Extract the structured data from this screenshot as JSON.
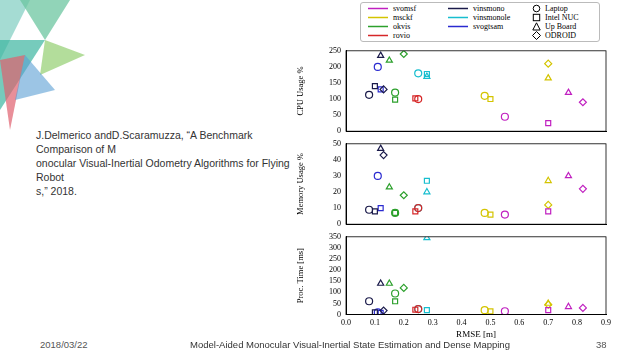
{
  "chart_data": [
    {
      "type": "scatter",
      "ylabel": "CPU Usage %",
      "xlim": [
        0,
        0.9
      ],
      "xticks": [
        {
          "value": 0,
          "label": "0.0"
        },
        0.1,
        0.2,
        0.3,
        0.4,
        0.5,
        0.6,
        0.7,
        0.8,
        0.9
      ],
      "ylim": [
        0,
        250
      ],
      "yticks": [
        0,
        50,
        100,
        150,
        200,
        250
      ],
      "grid": false,
      "tick_labels": "y",
      "series": [
        {
          "name": "svomsf",
          "color": "#c020c0",
          "x": [
            0.55,
            0.7,
            0.77,
            0.82
          ],
          "values": [
            45,
            25,
            120,
            90
          ]
        },
        {
          "name": "msckf",
          "color": "#d4c400",
          "x": [
            0.48,
            0.5,
            0.7,
            0.7
          ],
          "values": [
            110,
            100,
            165,
            210
          ]
        },
        {
          "name": "okvis",
          "color": "#2ca02c",
          "x": [
            0.17,
            0.17,
            0.15,
            0.2
          ],
          "values": [
            120,
            98,
            220,
            240
          ]
        },
        {
          "name": "rovio",
          "color": "#d62728",
          "x": [
            0.25,
            0.24,
            null,
            null
          ],
          "values": [
            100,
            102,
            null,
            null
          ]
        },
        {
          "name": "vinsmono",
          "color": "#1a1a4a",
          "x": [
            0.08,
            0.1,
            0.12,
            0.13
          ],
          "values": [
            113,
            140,
            235,
            130
          ]
        },
        {
          "name": "vinsmonole",
          "color": "#17becf",
          "x": [
            0.25,
            0.28,
            0.28,
            null
          ],
          "values": [
            180,
            178,
            170,
            null
          ]
        },
        {
          "name": "svogtsam",
          "color": "#2a2ad0",
          "x": [
            0.11,
            0.12,
            null,
            null
          ],
          "values": [
            200,
            130,
            null,
            null
          ]
        }
      ]
    },
    {
      "type": "scatter",
      "ylabel": "Memory Usage %",
      "xlim": [
        0,
        0.9
      ],
      "xticks": [
        {
          "value": 0,
          "label": "0.0"
        },
        0.1,
        0.2,
        0.3,
        0.4,
        0.5,
        0.6,
        0.7,
        0.8,
        0.9
      ],
      "ylim": [
        0,
        50
      ],
      "yticks": [
        0,
        10,
        20,
        30,
        40,
        50
      ],
      "grid": false,
      "tick_labels": "y",
      "series": [
        {
          "name": "svomsf",
          "color": "#c020c0",
          "x": [
            0.55,
            0.7,
            0.77,
            0.82
          ],
          "values": [
            6,
            8,
            30,
            22
          ]
        },
        {
          "name": "msckf",
          "color": "#d4c400",
          "x": [
            0.48,
            0.5,
            0.7,
            0.7
          ],
          "values": [
            7,
            6,
            27,
            12
          ]
        },
        {
          "name": "okvis",
          "color": "#2ca02c",
          "x": [
            0.17,
            0.17,
            0.15,
            0.2
          ],
          "values": [
            7,
            7,
            23,
            18
          ]
        },
        {
          "name": "rovio",
          "color": "#d62728",
          "x": [
            0.25,
            0.24,
            null,
            null
          ],
          "values": [
            10,
            8,
            null,
            null
          ]
        },
        {
          "name": "vinsmono",
          "color": "#1a1a4a",
          "x": [
            0.08,
            0.1,
            0.12,
            0.13
          ],
          "values": [
            9,
            8,
            47,
            43
          ]
        },
        {
          "name": "vinsmonole",
          "color": "#17becf",
          "x": [
            0.25,
            0.28,
            0.28,
            null
          ],
          "values": [
            10,
            27,
            20,
            null
          ]
        },
        {
          "name": "svogtsam",
          "color": "#2a2ad0",
          "x": [
            0.11,
            0.12,
            null,
            null
          ],
          "values": [
            30,
            10,
            null,
            null
          ]
        }
      ]
    },
    {
      "type": "scatter",
      "ylabel": "Proc. Time [ms]",
      "xlabel": "RMSE [m]",
      "xlim": [
        0,
        0.9
      ],
      "xticks": [
        {
          "value": 0,
          "label": "0.0"
        },
        0.1,
        0.2,
        0.3,
        0.4,
        0.5,
        0.6,
        0.7,
        0.8,
        0.9
      ],
      "ylim": [
        0,
        350
      ],
      "yticks": [
        0,
        50,
        100,
        150,
        200,
        250,
        300,
        350
      ],
      "grid": false,
      "series": [
        {
          "name": "svomsf",
          "color": "#c020c0",
          "x": [
            0.55,
            0.7,
            0.77,
            0.82
          ],
          "values": [
            15,
            20,
            35,
            30
          ]
        },
        {
          "name": "msckf",
          "color": "#d4c400",
          "x": [
            0.48,
            0.5,
            0.7,
            0.7
          ],
          "values": [
            20,
            15,
            50,
            45
          ]
        },
        {
          "name": "okvis",
          "color": "#2ca02c",
          "x": [
            0.17,
            0.17,
            0.15,
            0.2
          ],
          "values": [
            95,
            60,
            140,
            120
          ]
        },
        {
          "name": "rovio",
          "color": "#d62728",
          "x": [
            0.25,
            0.24,
            null,
            null
          ],
          "values": [
            25,
            22,
            null,
            null
          ]
        },
        {
          "name": "vinsmono",
          "color": "#1a1a4a",
          "x": [
            0.08,
            0.1,
            0.12,
            0.13
          ],
          "values": [
            60,
            10,
            140,
            18
          ]
        },
        {
          "name": "vinsmonole",
          "color": "#17becf",
          "x": [
            0.25,
            0.28,
            0.28,
            null
          ],
          "values": [
            25,
            20,
            345,
            null
          ]
        },
        {
          "name": "svogtsam",
          "color": "#2a2ad0",
          "x": [
            0.11,
            0.12,
            null,
            null
          ],
          "values": [
            10,
            8,
            null,
            null
          ]
        }
      ]
    }
  ],
  "platforms": [
    {
      "name": "Laptop",
      "marker": "circle"
    },
    {
      "name": "Intel NUC",
      "marker": "square"
    },
    {
      "name": "Up Board",
      "marker": "triangle"
    },
    {
      "name": "ODROID",
      "marker": "diamond"
    }
  ],
  "slide": {
    "citation_lines": [
      "J.Delmerico andD.Scaramuzza, “A Benchmark Comparison of M",
      "onocular Visual-Inertial Odometry Algorithms for Flying Robot",
      "s,” 2018."
    ],
    "date": "2018/03/22",
    "footer": "Model-Aided Monocular Visual-Inertial State Estimation and Dense Mapping",
    "page": "38"
  }
}
